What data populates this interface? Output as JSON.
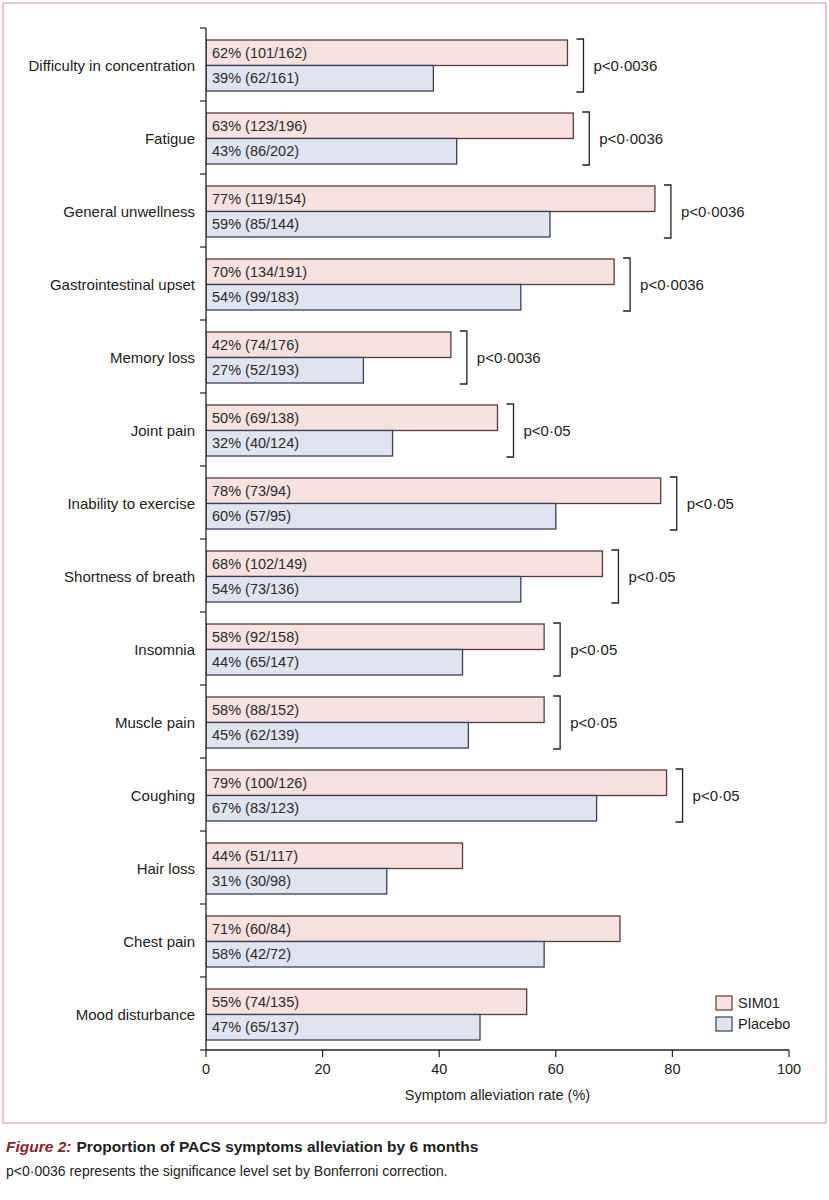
{
  "chart_data": {
    "type": "bar",
    "orientation": "horizontal",
    "figure_label": "Figure 2:",
    "title": "Proportion of PACS symptoms alleviation by 6 months",
    "note": "p<0·0036 represents the significance level set by Bonferroni correction.",
    "x_label": "Symptom alleviation rate (%)",
    "categories": [
      "Difficulty in concentration",
      "Fatigue",
      "General unwellness",
      "Gastrointestinal upset",
      "Memory loss",
      "Joint pain",
      "Inability to exercise",
      "Shortness of breath",
      "Insomnia",
      "Muscle pain",
      "Coughing",
      "Hair loss",
      "Chest pain",
      "Mood disturbance"
    ],
    "series": [
      {
        "name": "SIM01",
        "color": "#f7e2e0",
        "values": [
          62,
          63,
          77,
          70,
          42,
          50,
          78,
          68,
          58,
          58,
          79,
          44,
          71,
          55
        ],
        "value_labels": [
          "62% (101/162)",
          "63% (123/196)",
          "77% (119/154)",
          "70% (134/191)",
          "42% (74/176)",
          "50% (69/138)",
          "78% (73/94)",
          "68% (102/149)",
          "58% (92/158)",
          "58% (88/152)",
          "79% (100/126)",
          "44% (51/117)",
          "71% (60/84)",
          "55% (74/135)"
        ]
      },
      {
        "name": "Placebo",
        "color": "#e0e4f0",
        "values": [
          39,
          43,
          59,
          54,
          27,
          32,
          60,
          54,
          44,
          45,
          67,
          31,
          58,
          47
        ],
        "value_labels": [
          "39% (62/161)",
          "43% (86/202)",
          "59% (85/144)",
          "54% (99/183)",
          "27% (52/193)",
          "32% (40/124)",
          "60% (57/95)",
          "54% (73/136)",
          "44% (65/147)",
          "45% (62/139)",
          "67% (83/123)",
          "31% (30/98)",
          "58% (42/72)",
          "47% (65/137)"
        ]
      }
    ],
    "p_values": [
      "p<0·0036",
      "p<0·0036",
      "p<0·0036",
      "p<0·0036",
      "p<0·0036",
      "p<0·05",
      "p<0·05",
      "p<0·05",
      "p<0·05",
      "p<0·05",
      "p<0·05",
      null,
      null,
      null
    ],
    "xlim": [
      0,
      100
    ],
    "xticks": [
      0,
      20,
      40,
      60,
      80,
      100
    ],
    "data_labels": true,
    "legend": "lower right",
    "grid": false
  }
}
